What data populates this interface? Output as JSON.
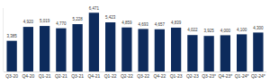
{
  "chart_data": {
    "type": "bar",
    "categories": [
      "Q3-20",
      "Q4-20",
      "Q1-21",
      "Q2-21",
      "Q3-21",
      "Q4-21",
      "Q1-22",
      "Q2-22",
      "Q3-22",
      "Q4-22",
      "Q1-23",
      "Q2-23",
      "Q3-23*",
      "Q4-23*",
      "Q1-24*",
      "Q2-24*"
    ],
    "values": [
      3385,
      4920,
      5019,
      4770,
      5228,
      6471,
      5423,
      4859,
      4693,
      4657,
      4839,
      4022,
      3925,
      4000,
      4100,
      4300
    ],
    "value_labels": [
      "3,385",
      "4,920",
      "5,019",
      "4,770",
      "5,228",
      "6,471",
      "5,423",
      "4,859",
      "4,693",
      "4,657",
      "4,839",
      "4,022",
      "3,925",
      "4,000",
      "4,100",
      "4,300"
    ],
    "color": "#0d2b5c",
    "ylim": [
      0,
      7000
    ],
    "grid": false,
    "data_labels": true,
    "tick_labels": "x"
  }
}
